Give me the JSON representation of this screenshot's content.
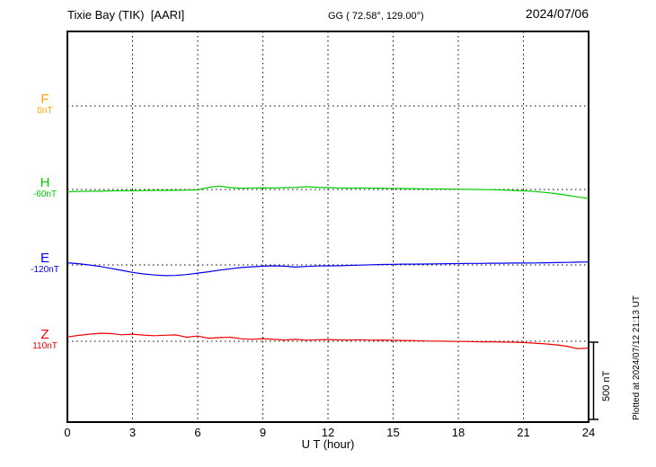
{
  "header": {
    "station": "Tixie Bay (TIK)  [AARI]",
    "coordinates": "GG ( 72.58°, 129.00°)",
    "date": "2024/07/06"
  },
  "footer": {
    "plotted_note": "Plotted at 2024/07/12 21:13 UT"
  },
  "scale_bar": {
    "label": "500 nT",
    "span_nT": 500
  },
  "colors": {
    "F": "#ffa500",
    "H": "#00cc00",
    "E": "#0000ee",
    "Z": "#ee0000",
    "frame": "#000000",
    "background": "#ffffff"
  },
  "chart_data": {
    "type": "line",
    "title": "Tixie Bay (TIK) [AARI] magnetogram 2024/07/06",
    "xlabel": "U T (hour)",
    "x_range": [
      0,
      24
    ],
    "x_ticks": [
      0,
      3,
      6,
      9,
      12,
      15,
      18,
      21,
      24
    ],
    "grid": "dotted",
    "legend_position": "left-margin",
    "scale_bar_nT": 500,
    "values_unit": "nT deviation from dotted baseline",
    "x": [
      0,
      0.5,
      1,
      1.5,
      2,
      2.5,
      3,
      3.5,
      4,
      4.5,
      5,
      5.5,
      6,
      6.5,
      7,
      7.5,
      8,
      8.5,
      9,
      9.5,
      10,
      10.5,
      11,
      11.5,
      12,
      12.5,
      13,
      13.5,
      14,
      14.5,
      15,
      15.5,
      16,
      16.5,
      17,
      17.5,
      18,
      18.5,
      19,
      19.5,
      20,
      20.5,
      21,
      21.5,
      22,
      22.5,
      23,
      23.5,
      24
    ],
    "series": [
      {
        "name": "F",
        "baseline_label": "0nT",
        "color": "#ffa500",
        "values": []
      },
      {
        "name": "H",
        "baseline_label": "-60nT",
        "color": "#00cc00",
        "values": [
          -15,
          -13,
          -11,
          -11,
          -9,
          -8,
          -8,
          -7,
          -6,
          -6,
          -5,
          -4,
          -3,
          14,
          22,
          12,
          8,
          10,
          11,
          10,
          12,
          13,
          18,
          14,
          12,
          10,
          9,
          10,
          9,
          8,
          7,
          6,
          5,
          4,
          4,
          3,
          2,
          1,
          0,
          -1,
          -3,
          -6,
          -9,
          -13,
          -19,
          -27,
          -37,
          -48,
          -58
        ]
      },
      {
        "name": "E",
        "baseline_label": "-120nT",
        "color": "#0000ee",
        "values": [
          14,
          8,
          0,
          -10,
          -22,
          -35,
          -48,
          -58,
          -65,
          -69,
          -68,
          -62,
          -53,
          -44,
          -34,
          -25,
          -17,
          -12,
          -8,
          -6,
          -8,
          -14,
          -10,
          -7,
          -6,
          -5,
          -3,
          -1,
          1,
          3,
          4,
          5,
          5,
          6,
          7,
          8,
          9,
          10,
          10,
          11,
          11,
          12,
          12,
          13,
          14,
          15,
          16,
          18,
          19
        ]
      },
      {
        "name": "Z",
        "baseline_label": "110nT",
        "color": "#ee0000",
        "values": [
          28,
          38,
          46,
          52,
          50,
          42,
          46,
          40,
          36,
          39,
          41,
          26,
          34,
          20,
          24,
          26,
          16,
          13,
          17,
          12,
          8,
          12,
          7,
          10,
          11,
          9,
          8,
          10,
          7,
          8,
          6,
          5,
          4,
          2,
          1,
          0,
          -1,
          -2,
          -4,
          -3,
          -5,
          -6,
          -8,
          -12,
          -17,
          -23,
          -32,
          -48,
          -44
        ]
      }
    ]
  }
}
